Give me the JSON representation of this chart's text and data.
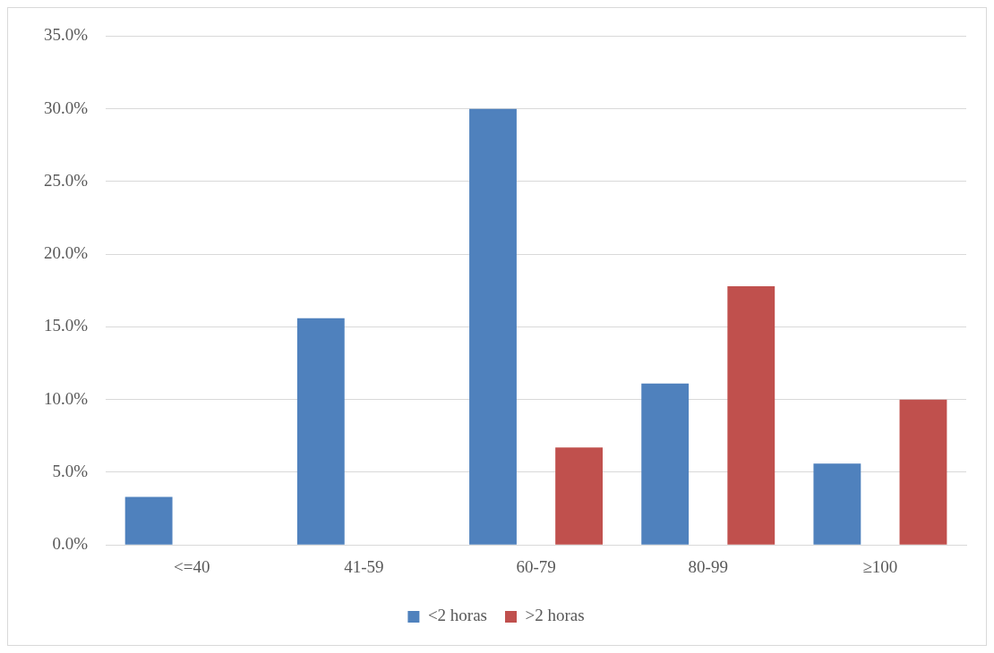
{
  "chart_data": {
    "type": "bar",
    "categories": [
      "<=40",
      "41-59",
      "60-79",
      "80-99",
      "≥100"
    ],
    "series": [
      {
        "name": "<2 horas",
        "color": "#4f81bd",
        "values": [
          3.3,
          15.6,
          30.0,
          11.1,
          5.6
        ]
      },
      {
        "name": ">2 horas",
        "color": "#c0504d",
        "values": [
          0,
          0,
          6.7,
          17.8,
          10.0
        ]
      }
    ],
    "ylim": [
      0,
      35
    ],
    "yticks": [
      {
        "value": 0,
        "label": "0.0%"
      },
      {
        "value": 5,
        "label": "5.0%"
      },
      {
        "value": 10,
        "label": "10.0%"
      },
      {
        "value": 15,
        "label": "15.0%"
      },
      {
        "value": 20,
        "label": "20.0%"
      },
      {
        "value": 25,
        "label": "25.0%"
      },
      {
        "value": 30,
        "label": "30.0%"
      },
      {
        "value": 35,
        "label": "35.0%"
      }
    ],
    "grid": "y",
    "legend": "bottom"
  }
}
